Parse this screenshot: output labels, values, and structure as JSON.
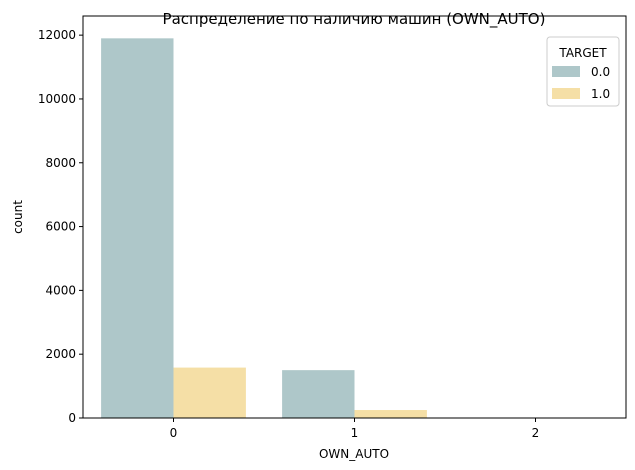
{
  "chart_data": {
    "type": "bar",
    "title": "Распределение по наличию машин (OWN_AUTO)",
    "xlabel": "OWN_AUTO",
    "ylabel": "count",
    "categories": [
      "0",
      "1",
      "2"
    ],
    "ylim": [
      0,
      12600
    ],
    "yticks": [
      0,
      2000,
      4000,
      6000,
      8000,
      10000,
      12000
    ],
    "grid": false,
    "legend": {
      "title": "TARGET",
      "placement": "top-right"
    },
    "series": [
      {
        "name": "0.0",
        "color": "#aec7c9",
        "values": [
          11900,
          1500,
          0
        ]
      },
      {
        "name": "1.0",
        "color": "#f5dfa6",
        "values": [
          1580,
          250,
          0
        ]
      }
    ]
  }
}
